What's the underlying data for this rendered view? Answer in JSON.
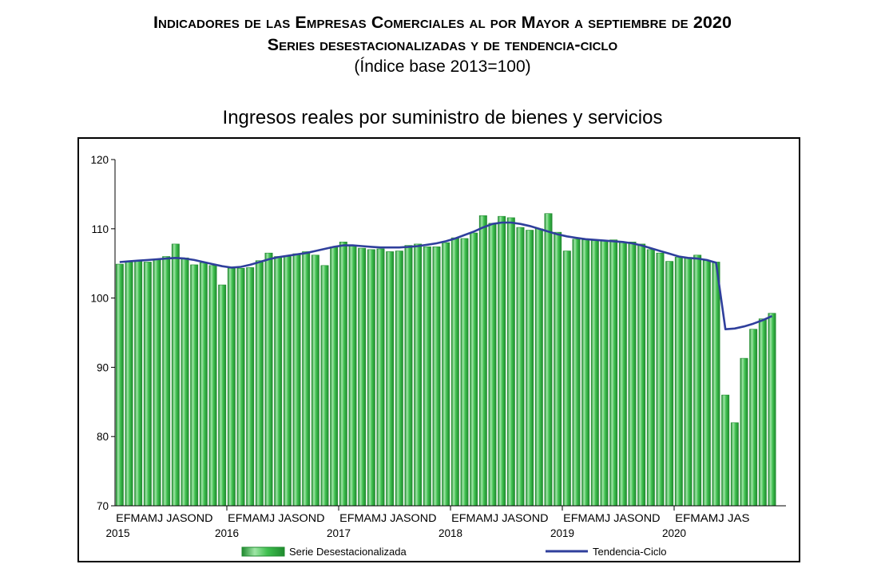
{
  "header": {
    "title": "Indicadores de las Empresas Comerciales al por Mayor a septiembre de 2020",
    "subtitle": "Series desestacionalizadas y de tendencia-ciclo",
    "base": "(Índice base 2013=100)"
  },
  "colors": {
    "bar": "#3fbf4f",
    "bar_light": "#9fe6a6",
    "bar_dark": "#1f8a2e",
    "line": "#2f3f9c"
  },
  "chart_data": {
    "type": "bar",
    "title": "Ingresos reales por suministro de bienes y servicios",
    "ylim": [
      70,
      120
    ],
    "yticks": [
      70,
      80,
      90,
      100,
      110,
      120
    ],
    "grid": false,
    "legend_position": "bottom",
    "x_labels": [
      "EFMAMJ JASOND",
      "EFMAMJ JASOND",
      "EFMAMJ JASOND",
      "EFMAMJ JASOND",
      "EFMAMJ JASOND",
      "EFMAMJ JAS"
    ],
    "years": [
      "2015",
      "2016",
      "2017",
      "2018",
      "2019",
      "2020"
    ],
    "series": [
      {
        "name": "Serie Desestacionalizada",
        "type": "bar",
        "values": [
          104.9,
          105.2,
          105.3,
          105.2,
          105.6,
          106.0,
          107.8,
          105.8,
          104.8,
          105.1,
          104.7,
          101.9,
          104.3,
          104.3,
          104.4,
          105.4,
          106.5,
          106.0,
          106.0,
          106.4,
          106.7,
          106.2,
          104.7,
          107.4,
          108.1,
          107.5,
          107.2,
          107.0,
          107.1,
          106.7,
          106.8,
          107.6,
          107.8,
          107.4,
          107.4,
          108.0,
          108.7,
          108.6,
          109.4,
          111.9,
          110.8,
          111.8,
          111.6,
          110.2,
          109.8,
          110.0,
          112.2,
          109.5,
          106.8,
          108.5,
          108.4,
          108.3,
          108.3,
          108.4,
          108.0,
          108.1,
          107.8,
          107.0,
          106.5,
          105.3,
          105.9,
          105.8,
          106.2,
          105.4,
          105.2,
          86.0,
          82.0,
          91.3,
          95.5,
          97.0,
          97.8
        ]
      },
      {
        "name": "Tendencia-Ciclo",
        "type": "line",
        "values": [
          105.2,
          105.3,
          105.4,
          105.5,
          105.6,
          105.7,
          105.8,
          105.7,
          105.5,
          105.2,
          104.9,
          104.6,
          104.4,
          104.5,
          104.8,
          105.2,
          105.6,
          105.9,
          106.1,
          106.3,
          106.5,
          106.8,
          107.1,
          107.4,
          107.6,
          107.6,
          107.5,
          107.4,
          107.3,
          107.3,
          107.3,
          107.4,
          107.5,
          107.7,
          107.9,
          108.2,
          108.6,
          109.1,
          109.6,
          110.2,
          110.7,
          110.9,
          110.9,
          110.7,
          110.4,
          110.0,
          109.6,
          109.2,
          108.9,
          108.7,
          108.5,
          108.4,
          108.3,
          108.2,
          108.1,
          107.9,
          107.6,
          107.2,
          106.8,
          106.4,
          106.0,
          105.8,
          105.7,
          105.5,
          105.1,
          95.5,
          95.6,
          95.9,
          96.3,
          96.8,
          97.4
        ]
      }
    ]
  }
}
